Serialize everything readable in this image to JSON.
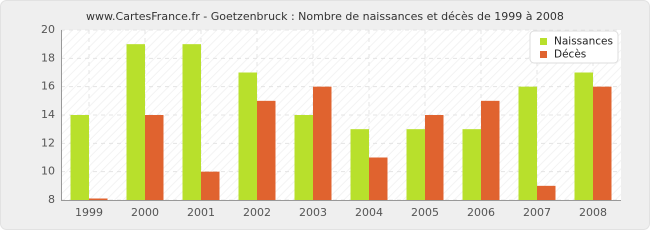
{
  "chart_data": {
    "type": "bar",
    "title": "www.CartesFrance.fr - Goetzenbruck : Nombre de naissances et décès de 1999 à 2008",
    "categories": [
      "1999",
      "2000",
      "2001",
      "2002",
      "2003",
      "2004",
      "2005",
      "2006",
      "2007",
      "2008"
    ],
    "series": [
      {
        "name": "Naissances",
        "color": "#b8e02c",
        "values": [
          14,
          19,
          19,
          17,
          14,
          13,
          13,
          13,
          16,
          17
        ]
      },
      {
        "name": "Décès",
        "color": "#e0632f",
        "values": [
          8,
          14,
          10,
          15,
          16,
          11,
          14,
          15,
          9,
          16
        ]
      }
    ],
    "ylim": [
      8,
      20
    ],
    "yticks": [
      8,
      10,
      12,
      14,
      16,
      18,
      20
    ],
    "grid": true,
    "legend": "top-right"
  }
}
